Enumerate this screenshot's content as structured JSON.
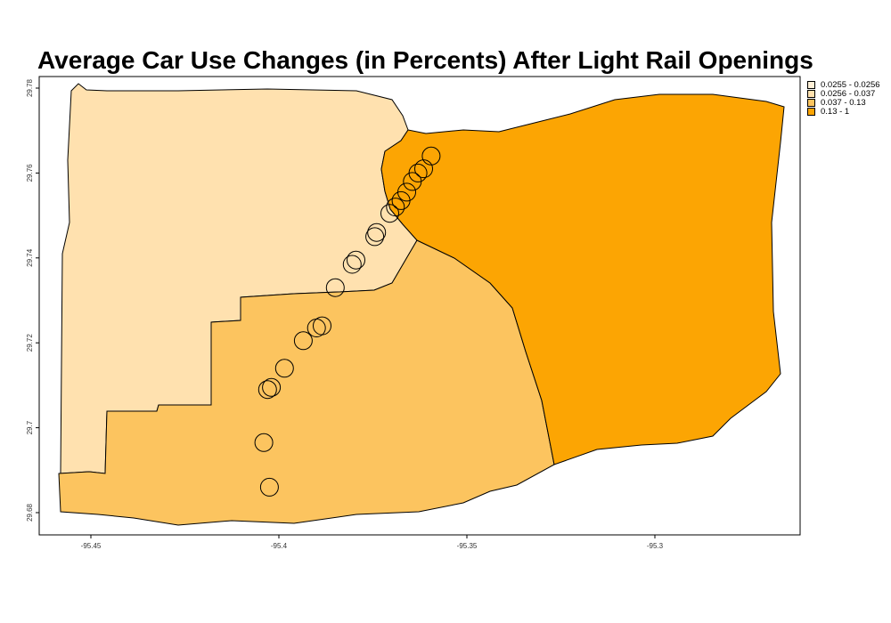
{
  "title": "Average Car Use Changes (in Percents) After Light Rail Openings",
  "legend": {
    "entries": [
      {
        "label": "0.0255 - 0.0256",
        "color": "#fff0d7"
      },
      {
        "label": "0.0256 - 0.037",
        "color": "#ffe1af"
      },
      {
        "label": "0.037 - 0.13",
        "color": "#fcc45f"
      },
      {
        "label": "0.13 - 1",
        "color": "#fca503"
      }
    ]
  },
  "axes": {
    "x_ticks": [
      "-95.45",
      "-95.4",
      "-95.35",
      "-95.3"
    ],
    "y_ticks": [
      "29.68",
      "29.7",
      "29.72",
      "29.74",
      "29.76",
      "29.78"
    ]
  },
  "regions": [
    {
      "name": "northwest-region",
      "class": "0.0256 - 0.037",
      "color": "#ffe1af"
    },
    {
      "name": "southwest-region",
      "class": "0.037 - 0.13",
      "color": "#fcc45f"
    },
    {
      "name": "east-region",
      "class": "0.13 - 1",
      "color": "#fca503"
    }
  ],
  "stations": [
    {
      "lon": -95.3595,
      "lat": 29.764
    },
    {
      "lon": -95.3615,
      "lat": 29.761
    },
    {
      "lon": -95.363,
      "lat": 29.76
    },
    {
      "lon": -95.3645,
      "lat": 29.758
    },
    {
      "lon": -95.366,
      "lat": 29.7555
    },
    {
      "lon": -95.3675,
      "lat": 29.7535
    },
    {
      "lon": -95.369,
      "lat": 29.752
    },
    {
      "lon": -95.3705,
      "lat": 29.7505
    },
    {
      "lon": -95.374,
      "lat": 29.746
    },
    {
      "lon": -95.3745,
      "lat": 29.745
    },
    {
      "lon": -95.3795,
      "lat": 29.7395
    },
    {
      "lon": -95.3805,
      "lat": 29.7385
    },
    {
      "lon": -95.385,
      "lat": 29.733
    },
    {
      "lon": -95.3885,
      "lat": 29.724
    },
    {
      "lon": -95.39,
      "lat": 29.7235
    },
    {
      "lon": -95.3935,
      "lat": 29.7205
    },
    {
      "lon": -95.3985,
      "lat": 29.714
    },
    {
      "lon": -95.402,
      "lat": 29.7095
    },
    {
      "lon": -95.403,
      "lat": 29.709
    },
    {
      "lon": -95.404,
      "lat": 29.6965
    },
    {
      "lon": -95.4025,
      "lat": 29.686
    }
  ]
}
